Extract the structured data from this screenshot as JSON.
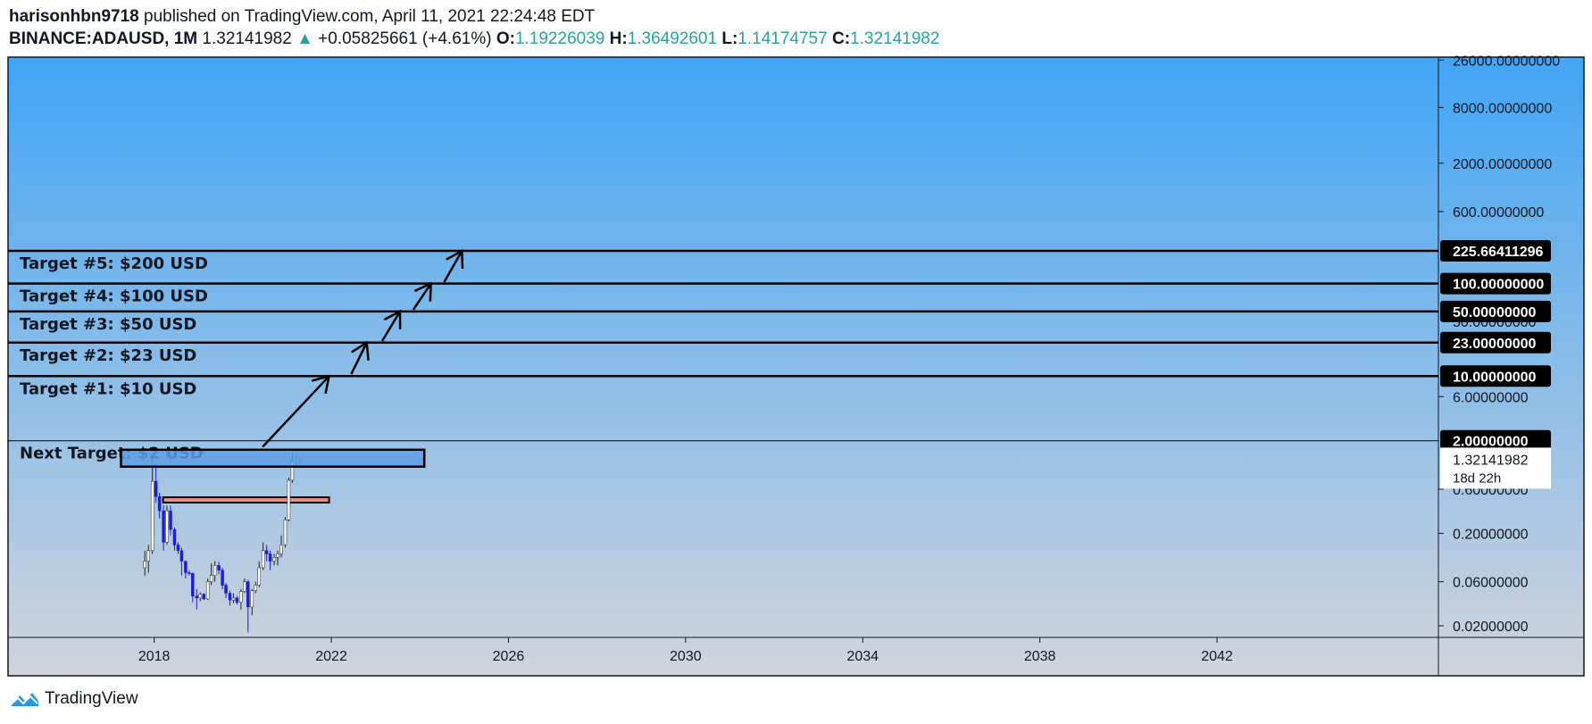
{
  "header": {
    "author": "harisonhbn9718",
    "published_text": " published on TradingView.com, April 11, 2021 22:24:48 EDT",
    "symbol": "BINANCE:ADAUSD, 1M",
    "last_price": "1.32141982",
    "change": "+0.05825661 (+4.61%)",
    "open_label": "O:",
    "open": "1.19226039",
    "high_label": "H:",
    "high": "1.36492601",
    "low_label": "L:",
    "low": "1.14174757",
    "close_label": "C:",
    "close": "1.32141982"
  },
  "footer": {
    "brand": "TradingView"
  },
  "colors": {
    "bg_top": "#42a5f5",
    "bg_bottom": "#d1d4dc",
    "up": "#ffffff",
    "down": "#1e1ed2",
    "zone_fill": "#5c9fe8",
    "support_fill": "#f28b82",
    "positive": "#26a69a"
  },
  "chart_data": {
    "type": "candlestick",
    "scale": "log",
    "ylim": [
      0.015,
      28000
    ],
    "xlim": [
      2014.7,
      2047.0
    ],
    "x_ticks": [
      "2018",
      "2022",
      "2026",
      "2030",
      "2034",
      "2038",
      "2042"
    ],
    "y_ticks": [
      "26000.00000000",
      "8000.00000000",
      "2000.00000000",
      "600.00000000",
      "6.00000000",
      "0.60000000",
      "0.20000000",
      "0.06000000",
      "0.02000000"
    ],
    "y_tick_values": [
      26000,
      8000,
      2000,
      600,
      6,
      0.6,
      0.2,
      0.06,
      0.02
    ],
    "partial_tick": "50.00000000",
    "target_lines": [
      {
        "label": "Target #5: $200 USD",
        "level": 225.66411296,
        "tag": "225.66411296"
      },
      {
        "label": "Target #4: $100 USD",
        "level": 100,
        "tag": "100.00000000"
      },
      {
        "label": "Target #3: $50 USD",
        "level": 50,
        "tag": "50.00000000"
      },
      {
        "label": "Target #2: $23 USD",
        "level": 23,
        "tag": "23.00000000"
      },
      {
        "label": "Target #1: $10 USD",
        "level": 10,
        "tag": "10.00000000"
      },
      {
        "label": "Next Target: $2 USD",
        "level": 2,
        "tag": "2.00000000"
      }
    ],
    "price_tag": {
      "value": "1.32141982",
      "countdown": "18d 22h"
    },
    "resistance_zone": {
      "x_start": 2017.25,
      "x_end": 2024.1,
      "top": 1.6,
      "bottom": 1.05
    },
    "support_zone": {
      "x_start": 2018.2,
      "x_end": 2021.95,
      "top": 0.49,
      "bottom": 0.43
    },
    "arrows": [
      {
        "x1": 2020.45,
        "y1": 1.72,
        "x2": 2021.95,
        "y2": 10
      },
      {
        "x1": 2022.45,
        "y1": 10.5,
        "x2": 2022.8,
        "y2": 23
      },
      {
        "x1": 2023.15,
        "y1": 24,
        "x2": 2023.55,
        "y2": 50
      },
      {
        "x1": 2023.85,
        "y1": 52,
        "x2": 2024.25,
        "y2": 100
      },
      {
        "x1": 2024.55,
        "y1": 104,
        "x2": 2024.95,
        "y2": 225.6
      }
    ],
    "candles": [
      {
        "t": 2017.79,
        "o": 0.085,
        "h": 0.13,
        "l": 0.07,
        "c": 0.1
      },
      {
        "t": 2017.87,
        "o": 0.1,
        "h": 0.15,
        "l": 0.075,
        "c": 0.13
      },
      {
        "t": 2017.96,
        "o": 0.13,
        "h": 1.35,
        "l": 0.12,
        "c": 0.73
      },
      {
        "t": 2018.04,
        "o": 0.73,
        "h": 1.15,
        "l": 0.43,
        "c": 0.5
      },
      {
        "t": 2018.12,
        "o": 0.5,
        "h": 0.55,
        "l": 0.29,
        "c": 0.35
      },
      {
        "t": 2018.21,
        "o": 0.35,
        "h": 0.4,
        "l": 0.13,
        "c": 0.16
      },
      {
        "t": 2018.29,
        "o": 0.16,
        "h": 0.4,
        "l": 0.15,
        "c": 0.35
      },
      {
        "t": 2018.37,
        "o": 0.35,
        "h": 0.4,
        "l": 0.19,
        "c": 0.22
      },
      {
        "t": 2018.46,
        "o": 0.22,
        "h": 0.23,
        "l": 0.13,
        "c": 0.15
      },
      {
        "t": 2018.54,
        "o": 0.15,
        "h": 0.16,
        "l": 0.12,
        "c": 0.13
      },
      {
        "t": 2018.62,
        "o": 0.13,
        "h": 0.14,
        "l": 0.07,
        "c": 0.1
      },
      {
        "t": 2018.71,
        "o": 0.1,
        "h": 0.1,
        "l": 0.065,
        "c": 0.075
      },
      {
        "t": 2018.79,
        "o": 0.075,
        "h": 0.08,
        "l": 0.07,
        "c": 0.074
      },
      {
        "t": 2018.87,
        "o": 0.074,
        "h": 0.075,
        "l": 0.036,
        "c": 0.042
      },
      {
        "t": 2018.96,
        "o": 0.042,
        "h": 0.05,
        "l": 0.03,
        "c": 0.04
      },
      {
        "t": 2019.04,
        "o": 0.04,
        "h": 0.046,
        "l": 0.037,
        "c": 0.044
      },
      {
        "t": 2019.12,
        "o": 0.044,
        "h": 0.045,
        "l": 0.038,
        "c": 0.039
      },
      {
        "t": 2019.21,
        "o": 0.039,
        "h": 0.065,
        "l": 0.038,
        "c": 0.06
      },
      {
        "t": 2019.29,
        "o": 0.06,
        "h": 0.095,
        "l": 0.055,
        "c": 0.07
      },
      {
        "t": 2019.37,
        "o": 0.07,
        "h": 0.1,
        "l": 0.06,
        "c": 0.09
      },
      {
        "t": 2019.46,
        "o": 0.09,
        "h": 0.098,
        "l": 0.072,
        "c": 0.08
      },
      {
        "t": 2019.54,
        "o": 0.08,
        "h": 0.085,
        "l": 0.05,
        "c": 0.055
      },
      {
        "t": 2019.62,
        "o": 0.055,
        "h": 0.058,
        "l": 0.04,
        "c": 0.045
      },
      {
        "t": 2019.71,
        "o": 0.045,
        "h": 0.048,
        "l": 0.033,
        "c": 0.038
      },
      {
        "t": 2019.79,
        "o": 0.038,
        "h": 0.045,
        "l": 0.035,
        "c": 0.04
      },
      {
        "t": 2019.87,
        "o": 0.04,
        "h": 0.042,
        "l": 0.034,
        "c": 0.036
      },
      {
        "t": 2019.96,
        "o": 0.036,
        "h": 0.05,
        "l": 0.03,
        "c": 0.047
      },
      {
        "t": 2020.04,
        "o": 0.047,
        "h": 0.065,
        "l": 0.045,
        "c": 0.06
      },
      {
        "t": 2020.12,
        "o": 0.06,
        "h": 0.063,
        "l": 0.017,
        "c": 0.032
      },
      {
        "t": 2020.21,
        "o": 0.032,
        "h": 0.05,
        "l": 0.026,
        "c": 0.048
      },
      {
        "t": 2020.29,
        "o": 0.048,
        "h": 0.06,
        "l": 0.045,
        "c": 0.055
      },
      {
        "t": 2020.37,
        "o": 0.055,
        "h": 0.1,
        "l": 0.052,
        "c": 0.085
      },
      {
        "t": 2020.46,
        "o": 0.085,
        "h": 0.16,
        "l": 0.08,
        "c": 0.13
      },
      {
        "t": 2020.54,
        "o": 0.13,
        "h": 0.15,
        "l": 0.1,
        "c": 0.12
      },
      {
        "t": 2020.62,
        "o": 0.12,
        "h": 0.13,
        "l": 0.08,
        "c": 0.1
      },
      {
        "t": 2020.71,
        "o": 0.1,
        "h": 0.12,
        "l": 0.09,
        "c": 0.11
      },
      {
        "t": 2020.79,
        "o": 0.11,
        "h": 0.13,
        "l": 0.09,
        "c": 0.12
      },
      {
        "t": 2020.87,
        "o": 0.12,
        "h": 0.19,
        "l": 0.11,
        "c": 0.15
      },
      {
        "t": 2020.96,
        "o": 0.15,
        "h": 0.3,
        "l": 0.14,
        "c": 0.28
      },
      {
        "t": 2021.04,
        "o": 0.28,
        "h": 0.8,
        "l": 0.27,
        "c": 0.75
      },
      {
        "t": 2021.12,
        "o": 0.75,
        "h": 1.48,
        "l": 0.7,
        "c": 1.2
      },
      {
        "t": 2021.21,
        "o": 1.2,
        "h": 1.4,
        "l": 1.05,
        "c": 1.26
      },
      {
        "t": 2021.29,
        "o": 1.26,
        "h": 1.36,
        "l": 1.14,
        "c": 1.32
      }
    ]
  }
}
